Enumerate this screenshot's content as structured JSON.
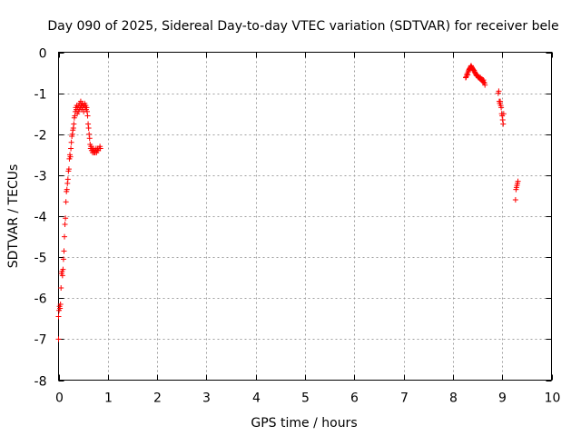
{
  "chart_data": {
    "type": "scatter",
    "title": "Day 090 of 2025, Sidereal Day-to-day VTEC variation (SDTVAR) for receiver bele",
    "xlabel": "GPS time / hours",
    "ylabel": "SDTVAR / TECUs",
    "xlim": [
      0,
      10
    ],
    "ylim": [
      -8,
      0
    ],
    "xticks": [
      "0",
      "1",
      "2",
      "3",
      "4",
      "5",
      "6",
      "7",
      "8",
      "9",
      "10"
    ],
    "yticks": [
      "0",
      "-1",
      "-2",
      "-3",
      "-4",
      "-5",
      "-6",
      "-7",
      "-8"
    ],
    "grid": true,
    "marker": "+",
    "series_color": "#ff0000",
    "points": [
      [
        0.0,
        -7.0
      ],
      [
        0.0,
        -6.45
      ],
      [
        0.01,
        -6.3
      ],
      [
        0.02,
        -6.2
      ],
      [
        0.03,
        -6.25
      ],
      [
        0.04,
        -6.15
      ],
      [
        0.05,
        -5.75
      ],
      [
        0.06,
        -5.4
      ],
      [
        0.07,
        -5.35
      ],
      [
        0.08,
        -5.45
      ],
      [
        0.09,
        -5.3
      ],
      [
        0.1,
        -5.05
      ],
      [
        0.11,
        -4.85
      ],
      [
        0.12,
        -4.5
      ],
      [
        0.13,
        -4.2
      ],
      [
        0.14,
        -4.05
      ],
      [
        0.15,
        -3.65
      ],
      [
        0.16,
        -3.4
      ],
      [
        0.17,
        -3.35
      ],
      [
        0.18,
        -3.2
      ],
      [
        0.19,
        -3.1
      ],
      [
        0.2,
        -2.9
      ],
      [
        0.21,
        -2.85
      ],
      [
        0.22,
        -2.6
      ],
      [
        0.23,
        -2.5
      ],
      [
        0.24,
        -2.55
      ],
      [
        0.25,
        -2.35
      ],
      [
        0.26,
        -2.2
      ],
      [
        0.27,
        -2.05
      ],
      [
        0.28,
        -2.0
      ],
      [
        0.29,
        -1.9
      ],
      [
        0.3,
        -1.85
      ],
      [
        0.31,
        -1.75
      ],
      [
        0.32,
        -1.6
      ],
      [
        0.33,
        -1.55
      ],
      [
        0.34,
        -1.45
      ],
      [
        0.35,
        -1.35
      ],
      [
        0.36,
        -1.4
      ],
      [
        0.37,
        -1.3
      ],
      [
        0.38,
        -1.5
      ],
      [
        0.39,
        -1.35
      ],
      [
        0.4,
        -1.45
      ],
      [
        0.41,
        -1.3
      ],
      [
        0.42,
        -1.4
      ],
      [
        0.43,
        -1.25
      ],
      [
        0.44,
        -1.35
      ],
      [
        0.45,
        -1.2
      ],
      [
        0.46,
        -1.3
      ],
      [
        0.47,
        -1.4
      ],
      [
        0.48,
        -1.25
      ],
      [
        0.49,
        -1.35
      ],
      [
        0.5,
        -1.3
      ],
      [
        0.51,
        -1.45
      ],
      [
        0.52,
        -1.3
      ],
      [
        0.53,
        -1.25
      ],
      [
        0.54,
        -1.35
      ],
      [
        0.55,
        -1.3
      ],
      [
        0.56,
        -1.4
      ],
      [
        0.57,
        -1.35
      ],
      [
        0.58,
        -1.45
      ],
      [
        0.59,
        -1.55
      ],
      [
        0.6,
        -1.75
      ],
      [
        0.61,
        -1.85
      ],
      [
        0.62,
        -2.0
      ],
      [
        0.63,
        -2.1
      ],
      [
        0.64,
        -2.25
      ],
      [
        0.65,
        -2.35
      ],
      [
        0.66,
        -2.3
      ],
      [
        0.67,
        -2.4
      ],
      [
        0.68,
        -2.35
      ],
      [
        0.69,
        -2.45
      ],
      [
        0.7,
        -2.4
      ],
      [
        0.71,
        -2.35
      ],
      [
        0.72,
        -2.45
      ],
      [
        0.73,
        -2.4
      ],
      [
        0.74,
        -2.45
      ],
      [
        0.75,
        -2.4
      ],
      [
        0.76,
        -2.35
      ],
      [
        0.77,
        -2.45
      ],
      [
        0.78,
        -2.4
      ],
      [
        0.79,
        -2.35
      ],
      [
        0.8,
        -2.4
      ],
      [
        0.82,
        -2.35
      ],
      [
        0.84,
        -2.3
      ],
      [
        0.85,
        -2.35
      ],
      [
        8.26,
        -0.62
      ],
      [
        8.27,
        -0.6
      ],
      [
        8.28,
        -0.56
      ],
      [
        8.29,
        -0.52
      ],
      [
        8.3,
        -0.55
      ],
      [
        8.31,
        -0.48
      ],
      [
        8.32,
        -0.45
      ],
      [
        8.33,
        -0.42
      ],
      [
        8.34,
        -0.4
      ],
      [
        8.35,
        -0.38
      ],
      [
        8.36,
        -0.35
      ],
      [
        8.37,
        -0.33
      ],
      [
        8.38,
        -0.36
      ],
      [
        8.39,
        -0.38
      ],
      [
        8.4,
        -0.4
      ],
      [
        8.41,
        -0.42
      ],
      [
        8.42,
        -0.45
      ],
      [
        8.43,
        -0.44
      ],
      [
        8.44,
        -0.48
      ],
      [
        8.45,
        -0.5
      ],
      [
        8.46,
        -0.52
      ],
      [
        8.47,
        -0.55
      ],
      [
        8.48,
        -0.57
      ],
      [
        8.49,
        -0.55
      ],
      [
        8.5,
        -0.58
      ],
      [
        8.51,
        -0.6
      ],
      [
        8.52,
        -0.62
      ],
      [
        8.53,
        -0.6
      ],
      [
        8.54,
        -0.63
      ],
      [
        8.55,
        -0.65
      ],
      [
        8.56,
        -0.62
      ],
      [
        8.57,
        -0.66
      ],
      [
        8.58,
        -0.68
      ],
      [
        8.59,
        -0.65
      ],
      [
        8.6,
        -0.7
      ],
      [
        8.61,
        -0.72
      ],
      [
        8.62,
        -0.68
      ],
      [
        8.63,
        -0.74
      ],
      [
        8.64,
        -0.75
      ],
      [
        8.65,
        -0.8
      ],
      [
        8.92,
        -1.0
      ],
      [
        8.93,
        -0.95
      ],
      [
        8.94,
        -1.2
      ],
      [
        8.95,
        -1.25
      ],
      [
        8.96,
        -1.2
      ],
      [
        8.97,
        -1.3
      ],
      [
        8.98,
        -1.35
      ],
      [
        8.99,
        -1.5
      ],
      [
        9.0,
        -1.55
      ],
      [
        9.01,
        -1.65
      ],
      [
        9.02,
        -1.75
      ],
      [
        9.03,
        -1.5
      ],
      [
        9.27,
        -3.6
      ],
      [
        9.28,
        -3.35
      ],
      [
        9.29,
        -3.3
      ],
      [
        9.3,
        -3.25
      ],
      [
        9.31,
        -3.2
      ],
      [
        9.32,
        -3.15
      ]
    ]
  }
}
